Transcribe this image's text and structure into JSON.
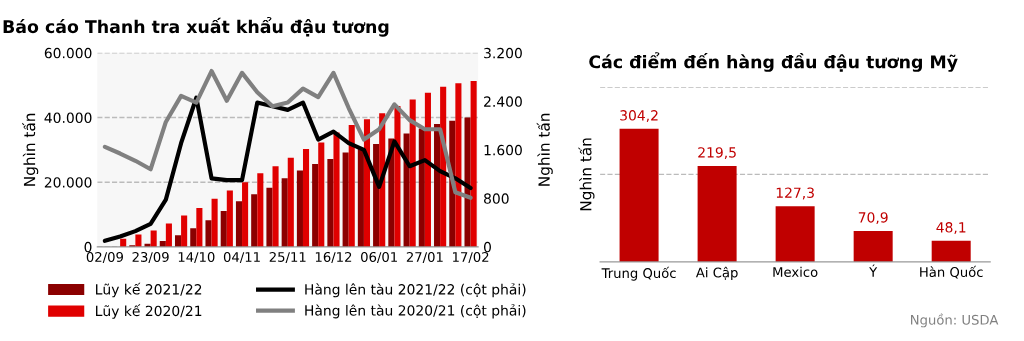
{
  "chart_data": [
    {
      "type": "bar",
      "title": "Báo cáo Thanh tra xuất khẩu đậu tương",
      "ylabel": "Nghìn tấn",
      "y2label": "Nghìn tấn",
      "categories": [
        "02/09",
        null,
        null,
        "23/09",
        null,
        null,
        "14/10",
        null,
        null,
        "04/11",
        null,
        null,
        "25/11",
        null,
        null,
        "16/12",
        null,
        null,
        "06/01",
        null,
        null,
        "27/01",
        null,
        null,
        "17/02"
      ],
      "series": [
        {
          "name": "Lũy kế 2021/22",
          "type": "bar",
          "color": "#8b0000",
          "values": [
            null,
            null,
            500,
            1000,
            1800,
            3600,
            5800,
            8200,
            11100,
            14100,
            16300,
            18300,
            21200,
            23600,
            25600,
            27200,
            29200,
            30500,
            31800,
            33500,
            35100,
            36600,
            38000,
            39000,
            40000
          ]
        },
        {
          "name": "Lũy kế 2020/21",
          "type": "bar",
          "color": "#e00000",
          "values": [
            null,
            2500,
            3800,
            5100,
            7200,
            9700,
            12000,
            14900,
            17400,
            20000,
            22800,
            24900,
            27600,
            30300,
            32300,
            35400,
            37700,
            39500,
            41300,
            43600,
            45600,
            47700,
            49500,
            50600,
            51300
          ]
        },
        {
          "name": "Hàng lên tàu 2021/22 (cột phải)",
          "type": "line",
          "axis": "y2",
          "color": "#000000",
          "values": [
            100,
            170,
            260,
            380,
            780,
            1710,
            2460,
            1130,
            1100,
            1100,
            2380,
            2320,
            2260,
            2380,
            1770,
            1900,
            1710,
            1600,
            990,
            1740,
            1330,
            1430,
            1250,
            1130,
            970
          ]
        },
        {
          "name": "Hàng lên tàu 2020/21 (cột phải)",
          "type": "line",
          "axis": "y2",
          "color": "#808080",
          "values": [
            1650,
            1540,
            1420,
            1280,
            2060,
            2490,
            2380,
            2900,
            2410,
            2870,
            2550,
            2320,
            2380,
            2610,
            2470,
            2870,
            2290,
            1770,
            1940,
            2350,
            2090,
            1940,
            1940,
            900,
            810
          ]
        }
      ],
      "ylim": [
        0,
        60000
      ],
      "yticks": [
        0,
        {
          "value": 20000,
          "label": "20.000"
        },
        {
          "value": 40000,
          "label": "40.000"
        },
        {
          "value": 60000,
          "label": "60.000"
        }
      ],
      "y2lim": [
        0,
        3200
      ],
      "y2ticks": [
        0,
        800,
        {
          "value": 1600,
          "label": "1.600"
        },
        {
          "value": 2400,
          "label": "2.400"
        },
        {
          "value": 3200,
          "label": "3.200"
        }
      ],
      "grid": "y",
      "legend": "bottom"
    },
    {
      "type": "bar",
      "title": "Các điểm đến hàng đầu đậu tương Mỹ",
      "ylabel": "Nghìn tấn",
      "categories": [
        "Trung Quốc",
        "Ai Cập",
        "Mexico",
        "Ý",
        "Hàn Quốc"
      ],
      "values": [
        304.2,
        219.5,
        127.3,
        70.9,
        48.1
      ],
      "value_labels": [
        "304,2",
        "219,5",
        "127,3",
        "70,9",
        "48,1"
      ],
      "color": "#c00000",
      "ylim": [
        0,
        400
      ],
      "yticks": [
        {
          "value": 200,
          "label": null
        },
        {
          "value": 400,
          "label": null
        }
      ],
      "tick_labels": "x",
      "grid": "y",
      "annotations": [
        "Nguồn: USDA"
      ]
    }
  ]
}
